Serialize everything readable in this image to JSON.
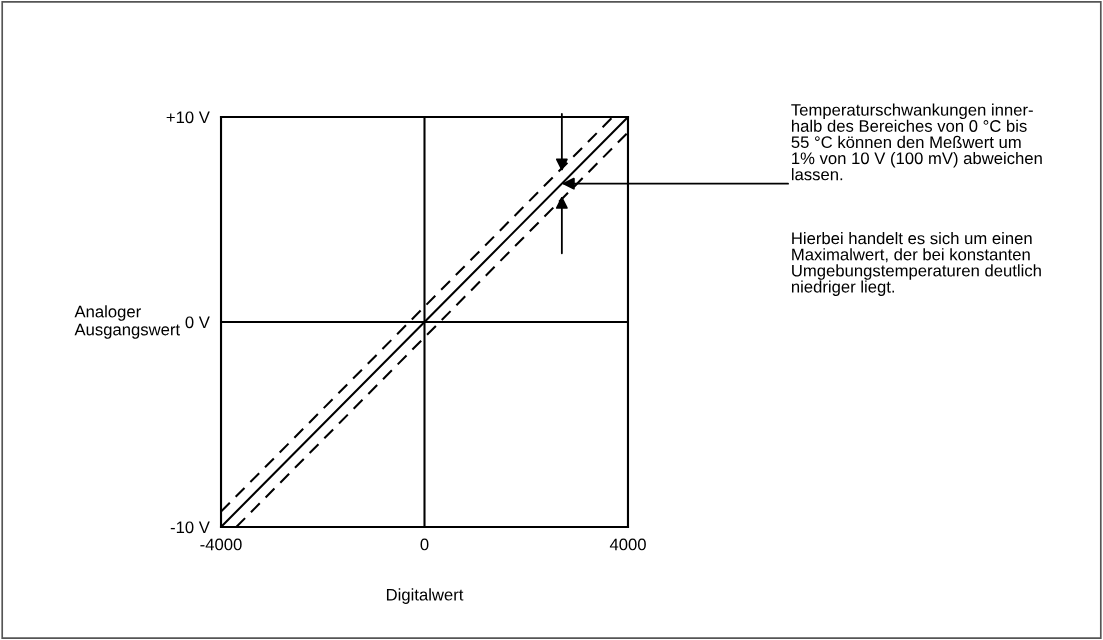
{
  "chart_data": {
    "type": "line",
    "xlabel": "Digitalwert",
    "ylabel": "Analoger\nAusgangswert",
    "xlim": [
      -4000,
      4000
    ],
    "ylim": [
      -10,
      10
    ],
    "xticks": [
      -4000,
      0,
      4000
    ],
    "yticks": [
      {
        "value": -10,
        "label": "-10 V"
      },
      {
        "value": 0,
        "label": "0 V"
      },
      {
        "value": 10,
        "label": "+10 V"
      }
    ],
    "series": [
      {
        "color": "#000000",
        "line_style": "solid",
        "x": [
          -4000,
          4000
        ],
        "values": [
          -10,
          10
        ]
      },
      {
        "color": "#000000",
        "line_style": "dashed",
        "x": [
          -4000,
          3700
        ],
        "values": [
          -9.25,
          10
        ]
      },
      {
        "color": "#000000",
        "line_style": "dashed",
        "x": [
          -3700,
          4000
        ],
        "values": [
          -10,
          9.25
        ]
      }
    ],
    "annotations": [
      {
        "text": "Temperaturschwankungen inner-\nhalb des Bereiches von 0 °C bis\n55 °C können den Meßwert um\n1% von 10 V (100 mV) abweichen\nlassen.",
        "x": 2700,
        "y": 6.75
      },
      "Hierbei handelt es sich um einen\nMaximalwert, der bei konstanten\nUmgebungstemperaturen deutlich\nniedriger liegt."
    ],
    "grid": true,
    "legend": false
  }
}
